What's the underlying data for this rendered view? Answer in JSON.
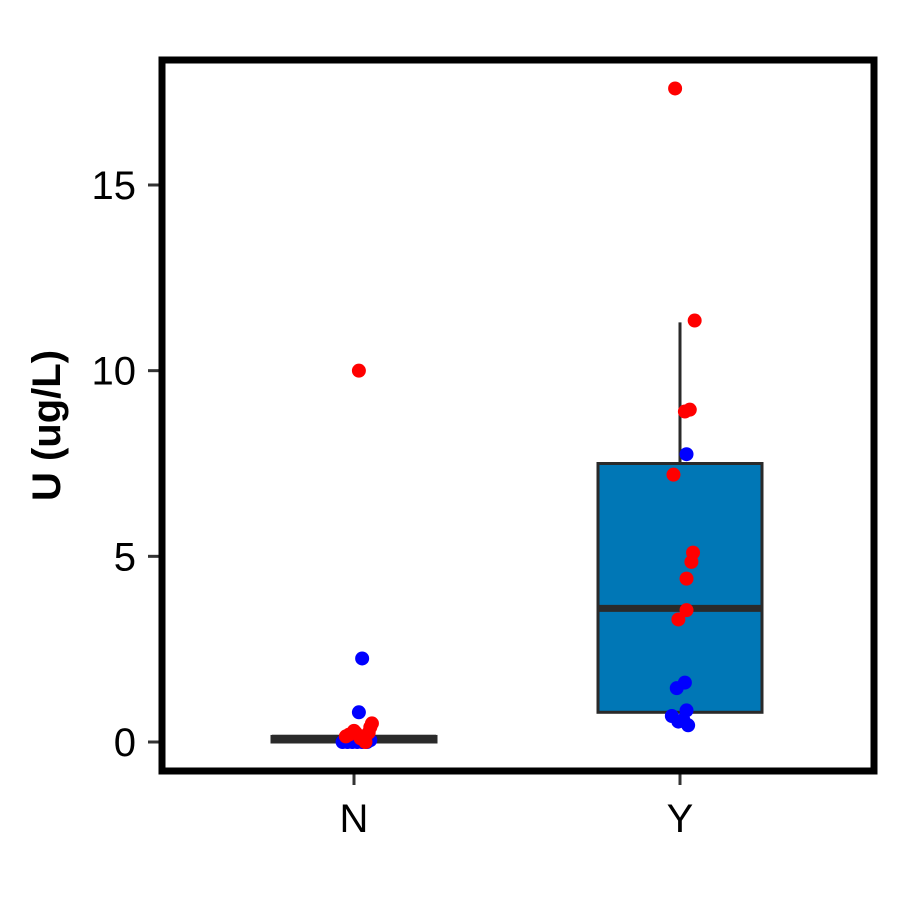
{
  "chart_data": {
    "type": "boxplot",
    "title": "",
    "xlabel": "",
    "ylabel": "U (ug/L)",
    "ylim": [
      -0.7,
      18.5
    ],
    "yticks": [
      0,
      5,
      10,
      15
    ],
    "categories": [
      "N",
      "Y"
    ],
    "grid": false,
    "legend": "none",
    "colors": {
      "box_fill": "#0077B6",
      "box_stroke": "#2a2a2a",
      "series_a": "#0000FF",
      "series_b": "#FF0000",
      "frame": "#000000"
    },
    "boxes": [
      {
        "category": "N",
        "q1": 0.0,
        "median": 0.1,
        "q3": 0.15,
        "whisker_low": 0.0,
        "whisker_high": 0.15
      },
      {
        "category": "Y",
        "q1": 0.8,
        "median": 3.6,
        "q3": 7.5,
        "whisker_low": 0.8,
        "whisker_high": 11.3
      }
    ],
    "points": [
      {
        "category": "N",
        "jitter": -0.07,
        "y": 0.0,
        "group": "a"
      },
      {
        "category": "N",
        "jitter": -0.04,
        "y": 0.0,
        "group": "a"
      },
      {
        "category": "N",
        "jitter": -0.01,
        "y": 0.0,
        "group": "a"
      },
      {
        "category": "N",
        "jitter": 0.02,
        "y": 0.0,
        "group": "a"
      },
      {
        "category": "N",
        "jitter": 0.05,
        "y": 0.0,
        "group": "a"
      },
      {
        "category": "N",
        "jitter": 0.08,
        "y": 0.0,
        "group": "a"
      },
      {
        "category": "N",
        "jitter": 0.1,
        "y": 0.05,
        "group": "a"
      },
      {
        "category": "N",
        "jitter": 0.03,
        "y": 0.8,
        "group": "a"
      },
      {
        "category": "N",
        "jitter": 0.05,
        "y": 2.25,
        "group": "a"
      },
      {
        "category": "N",
        "jitter": -0.05,
        "y": 0.15,
        "group": "b"
      },
      {
        "category": "N",
        "jitter": -0.03,
        "y": 0.2,
        "group": "b"
      },
      {
        "category": "N",
        "jitter": 0.0,
        "y": 0.3,
        "group": "b"
      },
      {
        "category": "N",
        "jitter": 0.01,
        "y": 0.25,
        "group": "b"
      },
      {
        "category": "N",
        "jitter": 0.04,
        "y": 0.1,
        "group": "b"
      },
      {
        "category": "N",
        "jitter": 0.06,
        "y": 0.15,
        "group": "b"
      },
      {
        "category": "N",
        "jitter": 0.07,
        "y": 0.0,
        "group": "b"
      },
      {
        "category": "N",
        "jitter": 0.09,
        "y": 0.25,
        "group": "b"
      },
      {
        "category": "N",
        "jitter": 0.1,
        "y": 0.4,
        "group": "b"
      },
      {
        "category": "N",
        "jitter": 0.11,
        "y": 0.5,
        "group": "b"
      },
      {
        "category": "N",
        "jitter": 0.03,
        "y": 10.0,
        "group": "b"
      },
      {
        "category": "Y",
        "jitter": -0.05,
        "y": 0.7,
        "group": "a"
      },
      {
        "category": "Y",
        "jitter": -0.01,
        "y": 0.55,
        "group": "a"
      },
      {
        "category": "Y",
        "jitter": 0.02,
        "y": 0.6,
        "group": "a"
      },
      {
        "category": "Y",
        "jitter": 0.04,
        "y": 0.85,
        "group": "a"
      },
      {
        "category": "Y",
        "jitter": 0.05,
        "y": 0.45,
        "group": "a"
      },
      {
        "category": "Y",
        "jitter": -0.02,
        "y": 1.45,
        "group": "a"
      },
      {
        "category": "Y",
        "jitter": 0.03,
        "y": 1.6,
        "group": "a"
      },
      {
        "category": "Y",
        "jitter": 0.04,
        "y": 7.75,
        "group": "a"
      },
      {
        "category": "Y",
        "jitter": -0.04,
        "y": 7.2,
        "group": "b"
      },
      {
        "category": "Y",
        "jitter": -0.01,
        "y": 3.3,
        "group": "b"
      },
      {
        "category": "Y",
        "jitter": 0.04,
        "y": 3.55,
        "group": "b"
      },
      {
        "category": "Y",
        "jitter": 0.04,
        "y": 4.4,
        "group": "b"
      },
      {
        "category": "Y",
        "jitter": 0.07,
        "y": 4.85,
        "group": "b"
      },
      {
        "category": "Y",
        "jitter": 0.08,
        "y": 5.1,
        "group": "b"
      },
      {
        "category": "Y",
        "jitter": 0.03,
        "y": 8.9,
        "group": "b"
      },
      {
        "category": "Y",
        "jitter": 0.06,
        "y": 8.95,
        "group": "b"
      },
      {
        "category": "Y",
        "jitter": 0.09,
        "y": 11.35,
        "group": "b"
      },
      {
        "category": "Y",
        "jitter": -0.03,
        "y": 17.6,
        "group": "b"
      }
    ]
  }
}
